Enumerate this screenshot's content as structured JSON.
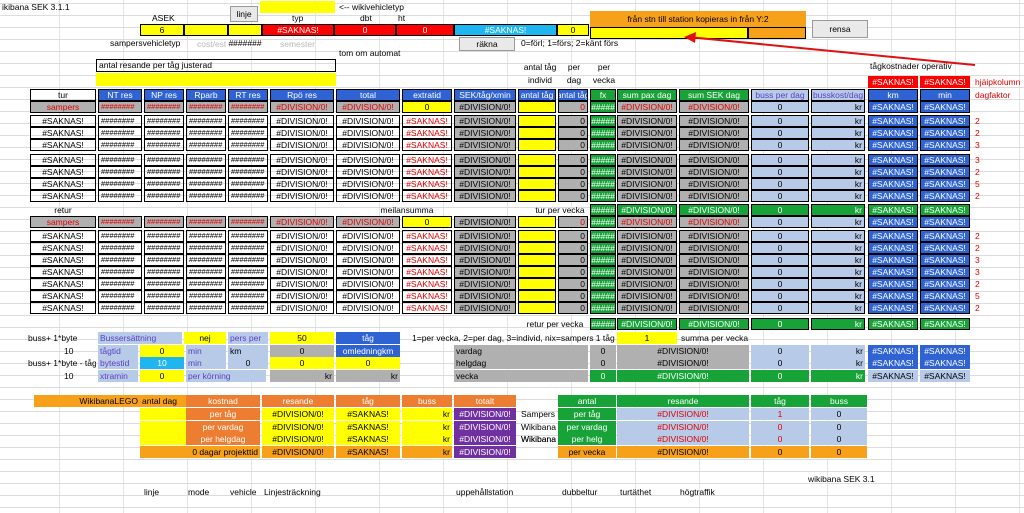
{
  "title": "ikibana SEK 3.1.1",
  "top": {
    "asek": "ASEK",
    "linje_btn": "linje",
    "arrow_note": "<-- wikivehicletyp",
    "typ": "typ",
    "dbt": "dbt",
    "ht": "ht",
    "val6": "6",
    "saknas": "#SAKNAS!",
    "zero": "0",
    "samper_label": "sampersvehicletyp",
    "hash": "#######",
    "gray1": "cost/est :=",
    "gray2": "semester",
    "tom": "tom om automat",
    "rakna": "räkna",
    "legend": "0=förl; 1=förs; 2=känt förs",
    "fran": "från stn  till station kopieras in från Y:2",
    "rensa": "rensa"
  },
  "mid": {
    "antal_res": "antal resande per tåg justerad",
    "antal_tag_individ": [
      "antal tåg",
      "individ"
    ],
    "per_dag": [
      "per",
      "dag"
    ],
    "per_vecka": [
      "per",
      "vecka"
    ],
    "tagkost": "tågkostnader operativ",
    "hjalp": "hjäipkolumn",
    "dagfaktor": "dagfaktor"
  },
  "headers": [
    "tur",
    "NT res",
    "NP res",
    "Rparb",
    "RT res",
    "Rpö res",
    "total",
    "extratid",
    "SEK/tåg/xmin",
    "antal tåg",
    "antal tåg",
    "fx",
    "sum pax dag",
    "sum SEK dag",
    "buss per dag",
    "busskost/dag",
    "km",
    "min"
  ],
  "vals": {
    "hashes": "########",
    "div": "#DIVISION/0!",
    "saknas": "#SAKNAS!",
    "zero": "0",
    "kr": "kr",
    "dash": "-",
    "five": "#####",
    "sampers": "sampers",
    "retur": "retur",
    "meilan": "meilansumma",
    "tur_per_vecka": "tur per vecka",
    "retur_per_vecka": "retur per vecka"
  },
  "hjalp_vals": [
    "2",
    "2",
    "3",
    "3",
    "2",
    "5",
    "2"
  ],
  "bottom": {
    "buss1": "buss+ 1*byte",
    "buss1t": "buss+ 1*byte - tåg",
    "ten": "10",
    "bussers": "Bussersättning",
    "nej": "nej",
    "pers_per": "pers per",
    "fifty": "50",
    "tag": "tåg",
    "tagtid": "tågtid",
    "bytestid": "bytestid",
    "xtramin": "xtramin",
    "min": "min",
    "km": "km",
    "omled": "omledningkm",
    "per_korning": "per körning",
    "perv_note": "1=per vecka, 2=per dag, 3=individ, nix=sampers 1 tåg",
    "one": "1",
    "summa": "summa per vecka",
    "vardag": "vardag",
    "helgdag": "helgdag",
    "vecka": "vecka"
  },
  "lego": {
    "title": "WikibanaLEGO",
    "antal_dag": "antal dag",
    "kostnad": "kostnad",
    "resande": "resande",
    "tag": "tåg",
    "buss": "buss",
    "totalt": "totalt",
    "rows": [
      "per tåg",
      "per vardag",
      "per helgdag",
      "per vecka"
    ],
    "projekt": "0  dagar projekttid",
    "sampers": "Sampers",
    "wikibana": "Wikibana",
    "antal": "antal",
    "rows2": [
      "per tåg",
      "per vardag",
      "per helg",
      "per vecka"
    ]
  },
  "footer": [
    "linje",
    "mode",
    "vehicle",
    "Linjesträckning",
    "uppehållstation",
    "dubbeltur",
    "turtäthet",
    "högtraffik"
  ],
  "version": "wikibana SEK 3.1"
}
